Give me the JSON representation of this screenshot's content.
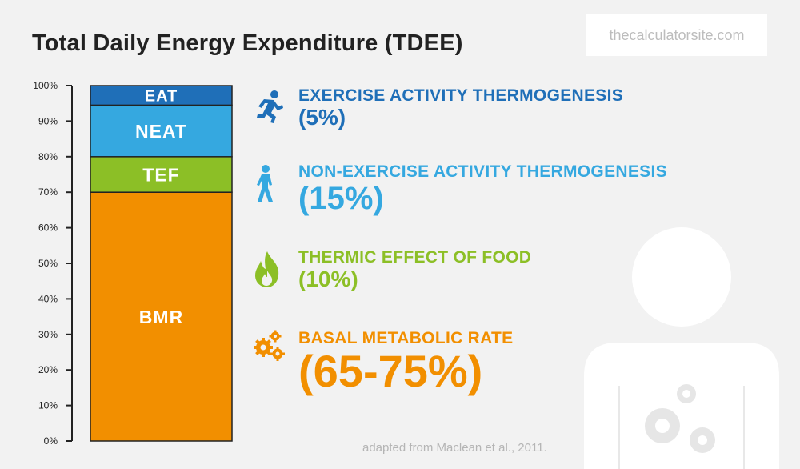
{
  "header": {
    "title": "Total Daily Energy Expenditure (TDEE)",
    "site": "thecalculatorsite.com"
  },
  "chart_data": {
    "type": "bar",
    "stacked": true,
    "ylim": [
      0,
      100
    ],
    "yticks": [
      "0%",
      "10%",
      "20%",
      "30%",
      "40%",
      "50%",
      "60%",
      "70%",
      "80%",
      "90%",
      "100%"
    ],
    "segments": [
      {
        "label": "BMR",
        "from": 0,
        "to": 70,
        "color": "#f28f00"
      },
      {
        "label": "TEF",
        "from": 70,
        "to": 80,
        "color": "#8cbf26"
      },
      {
        "label": "NEAT",
        "from": 80,
        "to": 94.5,
        "color": "#35a8e0"
      },
      {
        "label": "EAT",
        "from": 94.5,
        "to": 100,
        "color": "#1f6fb8"
      }
    ]
  },
  "legend": [
    {
      "name": "EXERCISE ACTIVITY THERMOGENESIS",
      "pct": "(5%)",
      "color": "#1f6fb8",
      "icon": "running-icon"
    },
    {
      "name": "NON-EXERCISE ACTIVITY THERMOGENESIS",
      "pct": "(15%)",
      "color": "#35a8e0",
      "icon": "walking-icon"
    },
    {
      "name": "THERMIC EFFECT OF FOOD",
      "pct": "(10%)",
      "color": "#8cbf26",
      "icon": "flame-icon"
    },
    {
      "name": "BASAL METABOLIC RATE",
      "pct": "(65-75%)",
      "color": "#f28f00",
      "icon": "gears-icon"
    }
  ],
  "footer": {
    "credit": "adapted from Maclean et al., 2011."
  }
}
